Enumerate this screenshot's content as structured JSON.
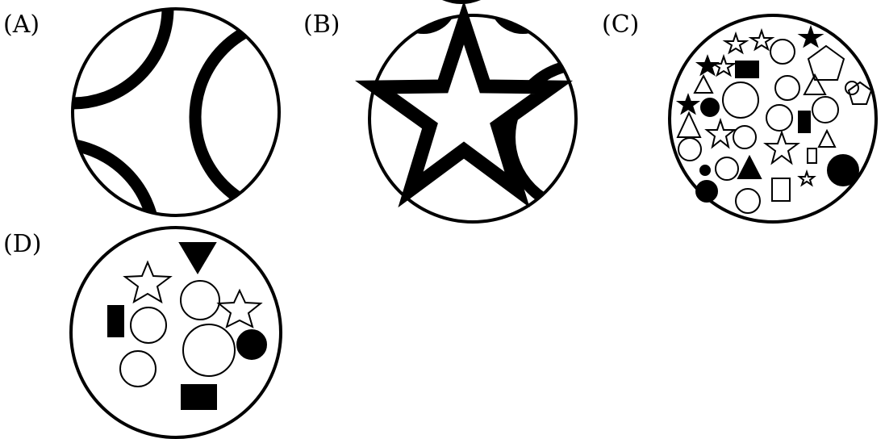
{
  "options": [
    {
      "key": "A",
      "label": "(A)"
    },
    {
      "key": "B",
      "label": "(B)"
    },
    {
      "key": "C",
      "label": "(C)"
    },
    {
      "key": "D",
      "label": "(D)"
    }
  ]
}
